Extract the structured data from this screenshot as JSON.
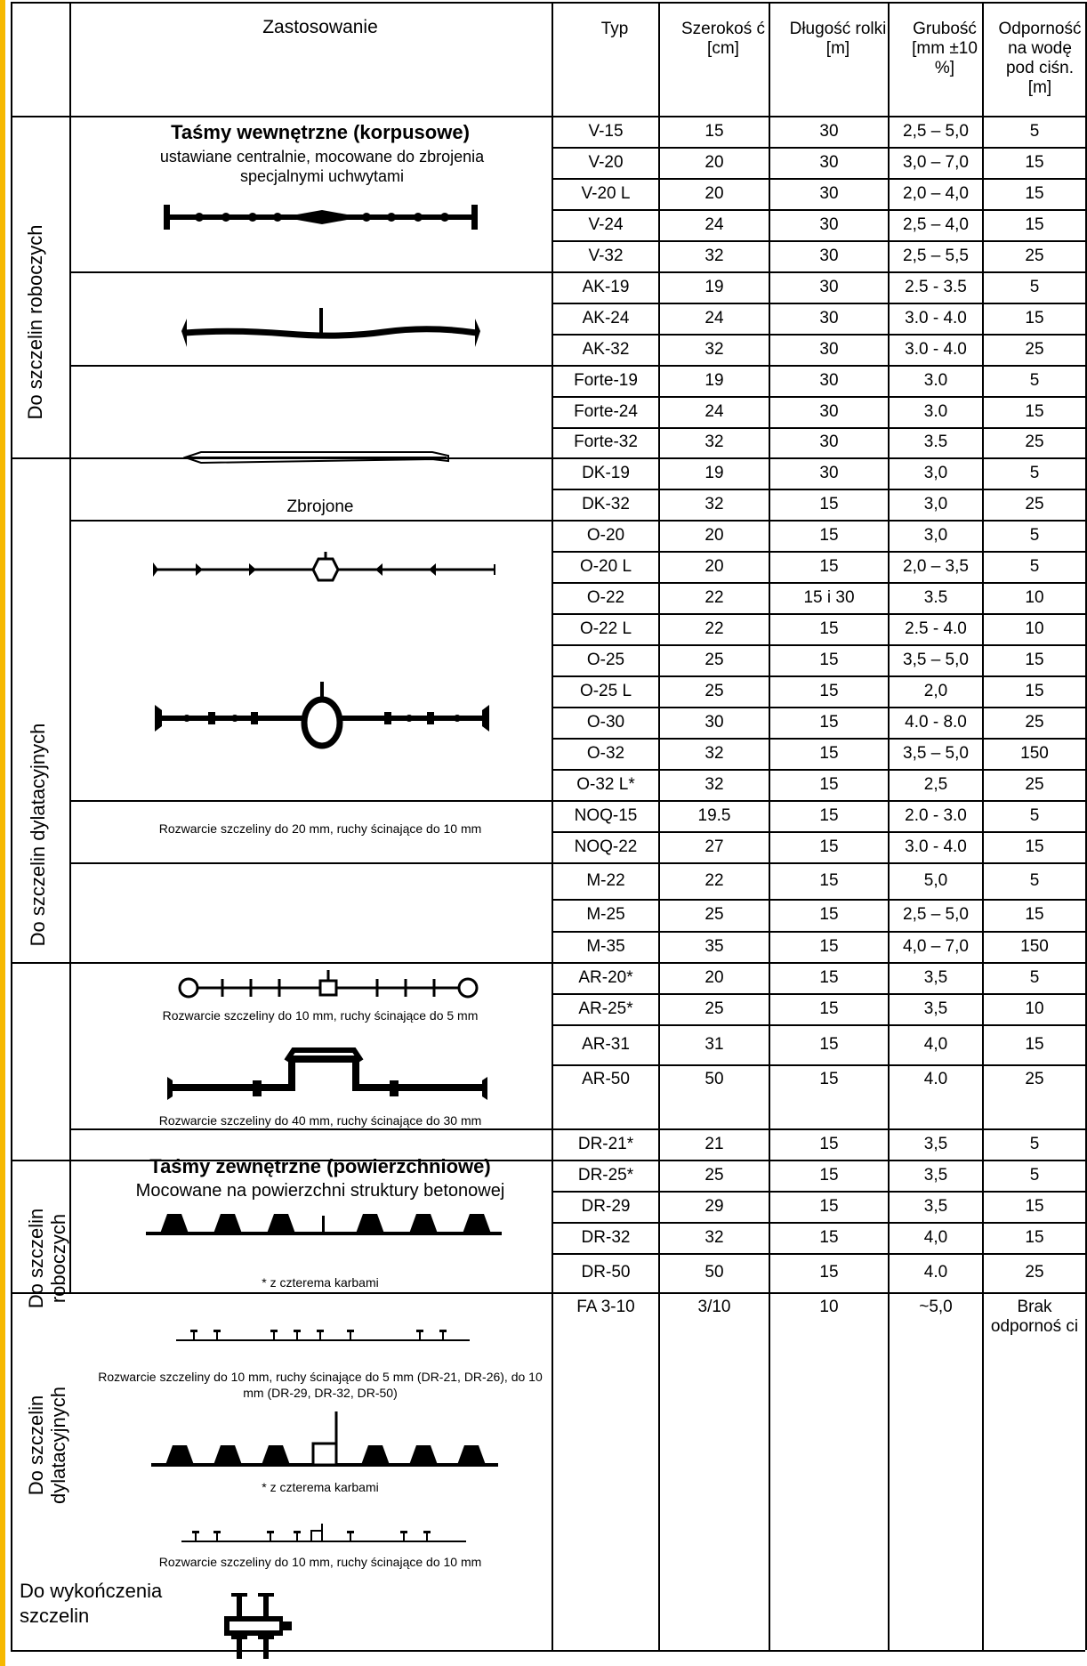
{
  "header": {
    "zastosowanie": "Zastosowanie",
    "typ": "Typ",
    "szerokosc": "Szerokoś ć [cm]",
    "dlugosc": "Długość rolki [m]",
    "grubosc": "Grubość [mm ±10 %]",
    "odpornosc": "Odporność na wodę pod ciśn. [m]"
  },
  "groups": {
    "robocze": "Do szczelin roboczych",
    "dylatacyjne": "Do szczelin dylatacyjnych",
    "robocze_zew": "Do szczelin roboczych",
    "dylatacyjne_zew": "Do szczelin dylatacyjnych",
    "wykonczenie": "Do wykończenia szczelin"
  },
  "captions": {
    "wewnetrzne_title": "Taśmy wewnętrzne (korpusowe)",
    "wewnetrzne_sub": "ustawiane centralnie, mocowane do zbrojenia specjalnymi uchwytami",
    "zbrojone": "Zbrojone",
    "o_note": "Rozwarcie szczeliny do 20 mm, ruchy ścinające do 10 mm",
    "noq_note": "Rozwarcie szczeliny do 10 mm, ruchy ścinające do 5 mm",
    "m_note": "Rozwarcie szczeliny do 40 mm, ruchy ścinające do 30 mm",
    "zewnetrzne_title": "Taśmy zewnętrzne (powierzchniowe)",
    "zewnetrzne_sub": "Mocowane na powierzchni struktury betonowej",
    "karby1": "* z czterema karbami",
    "dr_note": "Rozwarcie szczeliny do 10 mm, ruchy ścinające do 5 mm (DR-21, DR-26), do 10 mm (DR-29, DR-32, DR-50)",
    "karby2": "* z czterema karbami",
    "dr50_note": "Rozwarcie szczeliny do 10 mm, ruchy ścinające do 10 mm"
  },
  "rows": [
    {
      "typ": "V-15",
      "szer": "15",
      "dl": "30",
      "grub": "2,5 – 5,0",
      "odp": "5"
    },
    {
      "typ": "V-20",
      "szer": "20",
      "dl": "30",
      "grub": "3,0 – 7,0",
      "odp": "15"
    },
    {
      "typ": "V-20 L",
      "szer": "20",
      "dl": "30",
      "grub": "2,0 – 4,0",
      "odp": "15"
    },
    {
      "typ": "V-24",
      "szer": "24",
      "dl": "30",
      "grub": "2,5 – 4,0",
      "odp": "15"
    },
    {
      "typ": "V-32",
      "szer": "32",
      "dl": "30",
      "grub": "2,5 – 5,5",
      "odp": "25"
    },
    {
      "typ": "AK-19",
      "szer": "19",
      "dl": "30",
      "grub": "2.5 - 3.5",
      "odp": "5"
    },
    {
      "typ": "AK-24",
      "szer": "24",
      "dl": "30",
      "grub": "3.0 - 4.0",
      "odp": "15"
    },
    {
      "typ": "AK-32",
      "szer": "32",
      "dl": "30",
      "grub": "3.0 - 4.0",
      "odp": "25"
    },
    {
      "typ": "Forte-19",
      "szer": "19",
      "dl": "30",
      "grub": "3.0",
      "odp": "5"
    },
    {
      "typ": "Forte-24",
      "szer": "24",
      "dl": "30",
      "grub": "3.0",
      "odp": "15"
    },
    {
      "typ": "Forte-32",
      "szer": "32",
      "dl": "30",
      "grub": "3.5",
      "odp": "25"
    },
    {
      "typ": "DK-19",
      "szer": "19",
      "dl": "30",
      "grub": "3,0",
      "odp": "5"
    },
    {
      "typ": "DK-32",
      "szer": "32",
      "dl": "15",
      "grub": "3,0",
      "odp": "25"
    },
    {
      "typ": "O-20",
      "szer": "20",
      "dl": "15",
      "grub": "3,0",
      "odp": "5"
    },
    {
      "typ": "O-20 L",
      "szer": "20",
      "dl": "15",
      "grub": "2,0 – 3,5",
      "odp": "5"
    },
    {
      "typ": "O-22",
      "szer": "22",
      "dl": "15 i 30",
      "grub": "3.5",
      "odp": "10"
    },
    {
      "typ": "O-22 L",
      "szer": "22",
      "dl": "15",
      "grub": "2.5 - 4.0",
      "odp": "10"
    },
    {
      "typ": "O-25",
      "szer": "25",
      "dl": "15",
      "grub": "3,5 – 5,0",
      "odp": "15"
    },
    {
      "typ": "O-25 L",
      "szer": "25",
      "dl": "15",
      "grub": "2,0",
      "odp": "15"
    },
    {
      "typ": "O-30",
      "szer": "30",
      "dl": "15",
      "grub": "4.0 - 8.0",
      "odp": "25"
    },
    {
      "typ": "O-32",
      "szer": "32",
      "dl": "15",
      "grub": "3,5 – 5,0",
      "odp": "150"
    },
    {
      "typ": "O-32 L*",
      "szer": "32",
      "dl": "15",
      "grub": "2,5",
      "odp": "25"
    },
    {
      "typ": "NOQ-15",
      "szer": "19.5",
      "dl": "15",
      "grub": "2.0 - 3.0",
      "odp": "5"
    },
    {
      "typ": "NOQ-22",
      "szer": "27",
      "dl": "15",
      "grub": "3.0  - 4.0",
      "odp": "15"
    },
    {
      "typ": "M-22",
      "szer": "22",
      "dl": "15",
      "grub": "5,0",
      "odp": "5"
    },
    {
      "typ": "M-25",
      "szer": "25",
      "dl": "15",
      "grub": "2,5 – 5,0",
      "odp": "15"
    },
    {
      "typ": "M-35",
      "szer": "35",
      "dl": "15",
      "grub": "4,0 – 7,0",
      "odp": "150"
    },
    {
      "typ": "AR-20*",
      "szer": "20",
      "dl": "15",
      "grub": "3,5",
      "odp": "5"
    },
    {
      "typ": "AR-25*",
      "szer": "25",
      "dl": "15",
      "grub": "3,5",
      "odp": "10"
    },
    {
      "typ": "AR-31",
      "szer": "31",
      "dl": "15",
      "grub": "4,0",
      "odp": "15"
    },
    {
      "typ": "AR-50",
      "szer": "50",
      "dl": "15",
      "grub": "4.0",
      "odp": "25"
    },
    {
      "typ": "DR-21*",
      "szer": "21",
      "dl": "15",
      "grub": "3,5",
      "odp": "5"
    },
    {
      "typ": "DR-25*",
      "szer": "25",
      "dl": "15",
      "grub": "3,5",
      "odp": "5"
    },
    {
      "typ": "DR-29",
      "szer": "29",
      "dl": "15",
      "grub": "3,5",
      "odp": "15"
    },
    {
      "typ": "DR-32",
      "szer": "32",
      "dl": "15",
      "grub": "4,0",
      "odp": "15"
    },
    {
      "typ": "DR-50",
      "szer": "50",
      "dl": "15",
      "grub": "4.0",
      "odp": "25"
    },
    {
      "typ": "FA 3-10",
      "szer": "3/10",
      "dl": "10",
      "grub": "~5,0",
      "odp": "Brak odpornoś ci"
    }
  ]
}
